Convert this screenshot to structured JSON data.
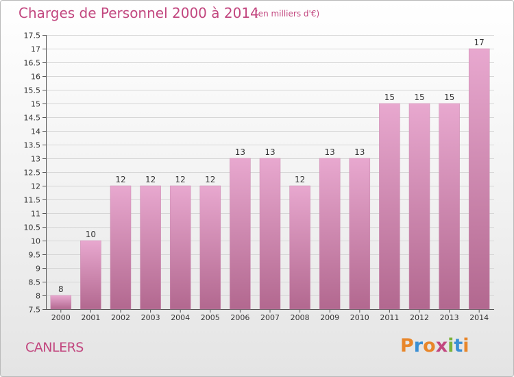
{
  "header": {
    "title": "Charges de Personnel 2000 à 2014",
    "subtitle": "(en milliers d'€)"
  },
  "footer": {
    "commune": "CANLERS",
    "logo_text": "Proxiti",
    "logo_colors": [
      "#e8862a",
      "#3a8fd4",
      "#e8862a",
      "#c2477f",
      "#7bb33b",
      "#3a8fd4",
      "#e8862a"
    ]
  },
  "colors": {
    "accent": "#c2477f",
    "bar_top": "#e8a8cf",
    "bar_bottom": "#b2688f"
  },
  "chart_data": {
    "type": "bar",
    "categories": [
      "2000",
      "2001",
      "2002",
      "2003",
      "2004",
      "2005",
      "2006",
      "2007",
      "2008",
      "2009",
      "2010",
      "2011",
      "2012",
      "2013",
      "2014"
    ],
    "values": [
      8,
      10,
      12,
      12,
      12,
      12,
      13,
      13,
      12,
      13,
      13,
      15,
      15,
      15,
      17
    ],
    "data_labels": [
      "8",
      "10",
      "12",
      "12",
      "12",
      "12",
      "13",
      "13",
      "12",
      "13",
      "13",
      "15",
      "15",
      "15",
      "17"
    ],
    "ylim": [
      7.5,
      17.5
    ],
    "yticks": [
      7.5,
      8,
      8.5,
      9,
      9.5,
      10,
      10.5,
      11,
      11.5,
      12,
      12.5,
      13,
      13.5,
      14,
      14.5,
      15,
      15.5,
      16,
      16.5,
      17,
      17.5
    ],
    "ytick_labels": [
      "7.5",
      "8",
      "8.5",
      "9",
      "9.5",
      "10",
      "10.5",
      "11",
      "11.5",
      "12",
      "12.5",
      "13",
      "13.5",
      "14",
      "14.5",
      "15",
      "15.5",
      "16",
      "16.5",
      "17",
      "17.5"
    ],
    "grid": "horizontal",
    "legend": "none"
  }
}
